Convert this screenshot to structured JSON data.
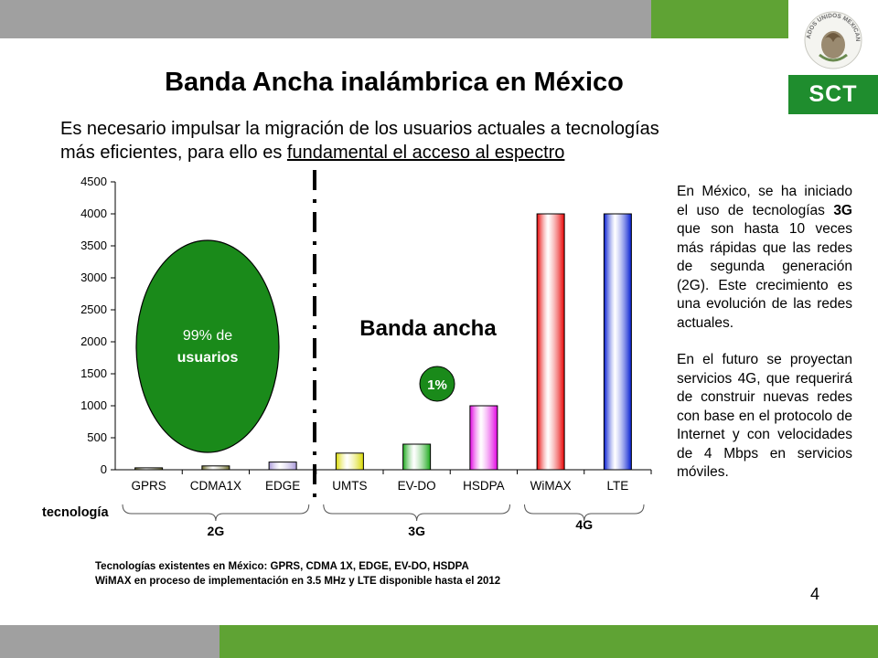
{
  "header": {
    "title": "Banda Ancha inalámbrica en México",
    "subtitle_line1": "Es necesario impulsar la migración de los usuarios actuales a tecnologías",
    "subtitle_line2_pre": "más eficientes, para ello es ",
    "subtitle_line2_underlined": "fundamental el acceso al espectro"
  },
  "logo": {
    "seal_text": "ESTADOS UNIDOS MEXICANOS",
    "label": "SCT"
  },
  "colors": {
    "top_gray": "#a0a0a0",
    "green_bar": "#5fa334",
    "sct_green": "#1f8d2e",
    "bubble_green": "#1a8a1a"
  },
  "chart_data": {
    "type": "bar",
    "categories": [
      "GPRS",
      "CDMA1X",
      "EDGE",
      "UMTS",
      "EV-DO",
      "HSDPA",
      "WiMAX",
      "LTE"
    ],
    "values": [
      30,
      60,
      120,
      260,
      400,
      1000,
      4000,
      4000
    ],
    "bar_colors": [
      "#6b6b2a",
      "#6b6b2a",
      "#a898d8",
      "#d8d800",
      "#1aa81a",
      "#e000e0",
      "#e80000",
      "#0018d0"
    ],
    "ylim": [
      0,
      4500
    ],
    "yticks": [
      0,
      500,
      1000,
      1500,
      2000,
      2500,
      3000,
      3500,
      4000,
      4500
    ],
    "xlabel": "tecnología",
    "groups": [
      {
        "label": "2G",
        "start": 0,
        "end": 2
      },
      {
        "label": "3G",
        "start": 3,
        "end": 5
      },
      {
        "label": "4G",
        "start": 6,
        "end": 7
      }
    ],
    "annotations": {
      "big_bubble": "99% de usuarios",
      "big_bubble_line1": "99% de",
      "big_bubble_line2": "usuarios",
      "small_bubble": "1%",
      "broadband_label": "Banda ancha"
    }
  },
  "side_text": {
    "p1_part1": "En México, se ha iniciado el uso de tecnologías ",
    "p1_bold": "3G",
    "p1_part2": " que son hasta 10 veces más rápidas que las redes de segunda generación (2G). Este crecimiento es una evolución de las redes actuales.",
    "p2": "En el futuro se proyectan servicios 4G, que requerirá de construir nuevas redes con base en el protocolo de Internet y con velocidades de 4 Mbps en servicios móviles."
  },
  "footnote": {
    "line1": "Tecnologías existentes en México: GPRS, CDMA 1X, EDGE, EV-DO, HSDPA",
    "line2": "WiMAX en proceso de implementación en 3.5 MHz y LTE disponible hasta el 2012"
  },
  "page_number": "4"
}
